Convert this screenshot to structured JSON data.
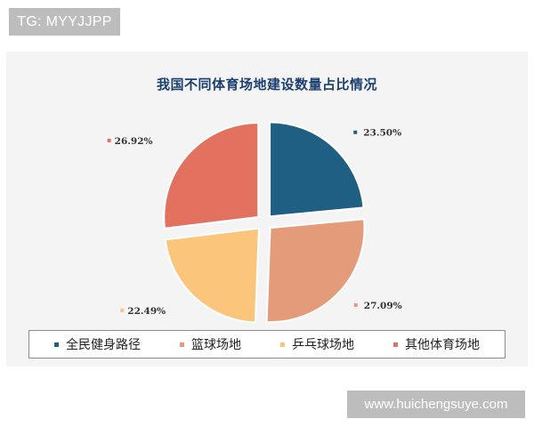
{
  "badges": {
    "watermark_top": "TG: MYYJJPP",
    "watermark_bottom": "www.huichengsuye.com"
  },
  "chart_data": {
    "type": "pie",
    "title": "我国不同体育场地建设数量占比情况",
    "categories": [
      "全民健身路径",
      "篮球场地",
      "乒乓球场地",
      "其他体育场地"
    ],
    "values": [
      23.5,
      27.09,
      22.49,
      26.92
    ],
    "value_labels": [
      "23.50%",
      "27.09%",
      "22.49%",
      "26.92%"
    ],
    "colors": [
      "#1f5f84",
      "#e49b79",
      "#fbc67c",
      "#e27160"
    ],
    "exploded": true,
    "legend_position": "bottom"
  }
}
